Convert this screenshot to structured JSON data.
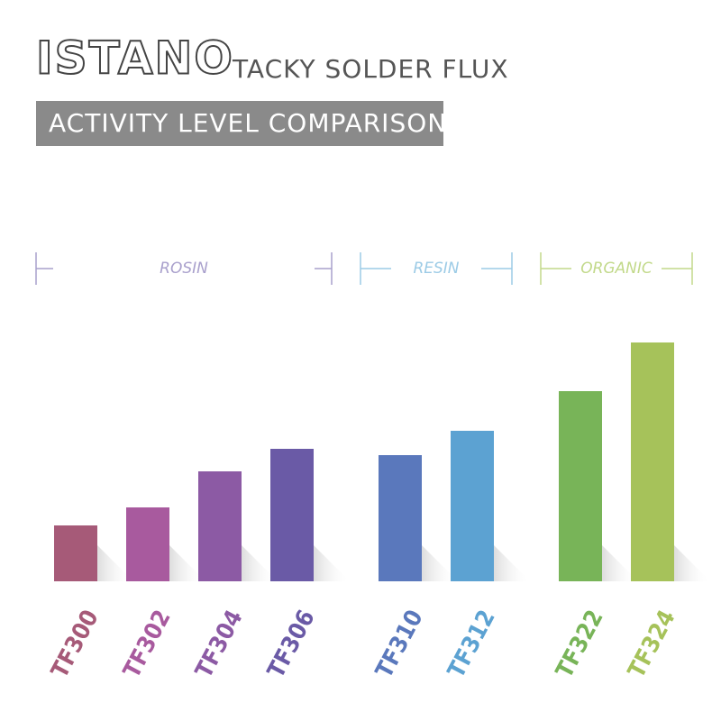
{
  "chart_data": {
    "type": "bar",
    "brand": "ISTANO",
    "title": "TACKY SOLDER FLUX",
    "subtitle": "ACTIVITY LEVEL COMPARISON",
    "categories": [
      "TF300",
      "TF302",
      "TF304",
      "TF306",
      "TF310",
      "TF312",
      "TF322",
      "TF324"
    ],
    "values": [
      62,
      82,
      122,
      147,
      140,
      167,
      211,
      265
    ],
    "colors": [
      "#a65a78",
      "#a85a9e",
      "#8c5aa4",
      "#6a5aa6",
      "#5a78bc",
      "#5ca2d2",
      "#78b458",
      "#a6c25a"
    ],
    "groups": [
      {
        "name": "ROSIN",
        "color": "#a9a0cc",
        "count": 4
      },
      {
        "name": "RESIN",
        "color": "#9ccbe6",
        "count": 2
      },
      {
        "name": "ORGANIC",
        "color": "#c2d98a",
        "count": 2
      }
    ]
  }
}
